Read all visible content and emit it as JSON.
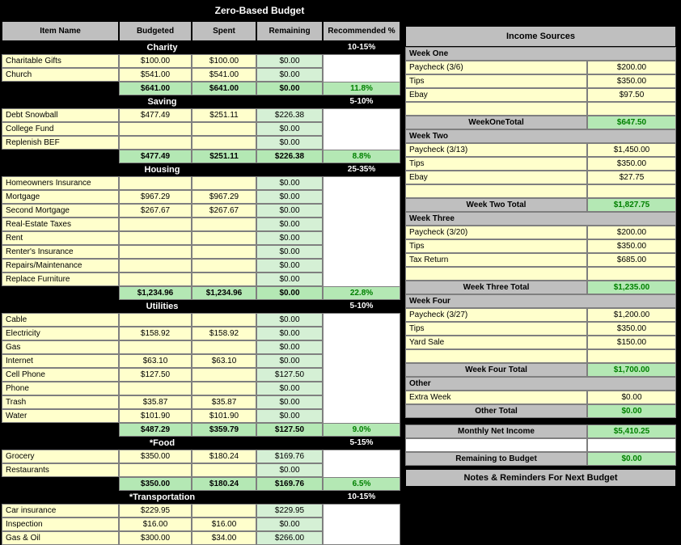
{
  "title": "Zero-Based Budget",
  "headers": {
    "name": "Item Name",
    "budgeted": "Budgeted",
    "spent": "Spent",
    "remaining": "Remaining",
    "rec": "Recommended %"
  },
  "cats": [
    {
      "name": "Charity",
      "pct": "10-15%",
      "rows": [
        {
          "n": "Charitable Gifts",
          "b": "$100.00",
          "s": "$100.00",
          "r": "$0.00"
        },
        {
          "n": "Church",
          "b": "$541.00",
          "s": "$541.00",
          "r": "$0.00"
        }
      ],
      "tot": {
        "b": "$641.00",
        "s": "$641.00",
        "r": "$0.00",
        "p": "11.8%"
      }
    },
    {
      "name": "Saving",
      "pct": "5-10%",
      "rows": [
        {
          "n": "Debt Snowball",
          "b": "$477.49",
          "s": "$251.11",
          "r": "$226.38"
        },
        {
          "n": "College Fund",
          "b": "",
          "s": "",
          "r": "$0.00"
        },
        {
          "n": "Replenish BEF",
          "b": "",
          "s": "",
          "r": "$0.00"
        }
      ],
      "tot": {
        "b": "$477.49",
        "s": "$251.11",
        "r": "$226.38",
        "p": "8.8%"
      }
    },
    {
      "name": "Housing",
      "pct": "25-35%",
      "rows": [
        {
          "n": "Homeowners Insurance",
          "b": "",
          "s": "",
          "r": "$0.00"
        },
        {
          "n": "Mortgage",
          "b": "$967.29",
          "s": "$967.29",
          "r": "$0.00"
        },
        {
          "n": "Second Mortgage",
          "b": "$267.67",
          "s": "$267.67",
          "r": "$0.00"
        },
        {
          "n": "Real-Estate Taxes",
          "b": "",
          "s": "",
          "r": "$0.00"
        },
        {
          "n": "Rent",
          "b": "",
          "s": "",
          "r": "$0.00"
        },
        {
          "n": "Renter's Insurance",
          "b": "",
          "s": "",
          "r": "$0.00"
        },
        {
          "n": "Repairs/Maintenance",
          "b": "",
          "s": "",
          "r": "$0.00"
        },
        {
          "n": "Replace Furniture",
          "b": "",
          "s": "",
          "r": "$0.00"
        }
      ],
      "tot": {
        "b": "$1,234.96",
        "s": "$1,234.96",
        "r": "$0.00",
        "p": "22.8%"
      }
    },
    {
      "name": "Utilities",
      "pct": "5-10%",
      "rows": [
        {
          "n": "Cable",
          "b": "",
          "s": "",
          "r": "$0.00"
        },
        {
          "n": "Electricity",
          "b": "$158.92",
          "s": "$158.92",
          "r": "$0.00"
        },
        {
          "n": "Gas",
          "b": "",
          "s": "",
          "r": "$0.00"
        },
        {
          "n": "Internet",
          "b": "$63.10",
          "s": "$63.10",
          "r": "$0.00"
        },
        {
          "n": "Cell Phone",
          "b": "$127.50",
          "s": "",
          "r": "$127.50"
        },
        {
          "n": "Phone",
          "b": "",
          "s": "",
          "r": "$0.00"
        },
        {
          "n": "Trash",
          "b": "$35.87",
          "s": "$35.87",
          "r": "$0.00"
        },
        {
          "n": "Water",
          "b": "$101.90",
          "s": "$101.90",
          "r": "$0.00"
        }
      ],
      "tot": {
        "b": "$487.29",
        "s": "$359.79",
        "r": "$127.50",
        "p": "9.0%"
      }
    },
    {
      "name": "*Food",
      "pct": "5-15%",
      "rows": [
        {
          "n": "Grocery",
          "b": "$350.00",
          "s": "$180.24",
          "r": "$169.76"
        },
        {
          "n": "Restaurants",
          "b": "",
          "s": "",
          "r": "$0.00"
        }
      ],
      "tot": {
        "b": "$350.00",
        "s": "$180.24",
        "r": "$169.76",
        "p": "6.5%"
      }
    },
    {
      "name": "*Transportation",
      "pct": "10-15%",
      "rows": [
        {
          "n": "Car insurance",
          "b": "$229.95",
          "s": "",
          "r": "$229.95"
        },
        {
          "n": "Inspection",
          "b": "$16.00",
          "s": "$16.00",
          "r": "$0.00"
        },
        {
          "n": "Gas & Oil",
          "b": "$300.00",
          "s": "$34.00",
          "r": "$266.00"
        }
      ],
      "tot": null
    }
  ],
  "income": {
    "title": "Income Sources",
    "weeks": [
      {
        "label": "Week One",
        "rows": [
          {
            "n": "Paycheck (3/6)",
            "v": "$200.00"
          },
          {
            "n": "Tips",
            "v": "$350.00"
          },
          {
            "n": "Ebay",
            "v": "$97.50"
          },
          {
            "n": "",
            "v": ""
          }
        ],
        "totLabel": "WeekOneTotal",
        "totVal": "$647.50"
      },
      {
        "label": "Week Two",
        "rows": [
          {
            "n": "Paycheck (3/13)",
            "v": "$1,450.00"
          },
          {
            "n": "Tips",
            "v": "$350.00"
          },
          {
            "n": "Ebay",
            "v": "$27.75"
          },
          {
            "n": "",
            "v": ""
          }
        ],
        "totLabel": "Week Two Total",
        "totVal": "$1,827.75"
      },
      {
        "label": "Week Three",
        "rows": [
          {
            "n": "Paycheck (3/20)",
            "v": "$200.00"
          },
          {
            "n": "Tips",
            "v": "$350.00"
          },
          {
            "n": "Tax Return",
            "v": "$685.00"
          },
          {
            "n": "",
            "v": ""
          }
        ],
        "totLabel": "Week Three Total",
        "totVal": "$1,235.00"
      },
      {
        "label": "Week Four",
        "rows": [
          {
            "n": "Paycheck (3/27)",
            "v": "$1,200.00"
          },
          {
            "n": "Tips",
            "v": "$350.00"
          },
          {
            "n": "Yard Sale",
            "v": "$150.00"
          },
          {
            "n": "",
            "v": ""
          }
        ],
        "totLabel": "Week Four Total",
        "totVal": "$1,700.00"
      }
    ],
    "other": {
      "label": "Other",
      "rows": [
        {
          "n": "Extra Week",
          "v": "$0.00"
        }
      ],
      "totLabel": "Other Total",
      "totVal": "$0.00"
    },
    "net": {
      "label": "Monthly Net Income",
      "val": "$5,410.25"
    },
    "remain": {
      "label": "Remaining to Budget",
      "val": "$0.00"
    },
    "notes": "Notes & Reminders For Next Budget"
  }
}
